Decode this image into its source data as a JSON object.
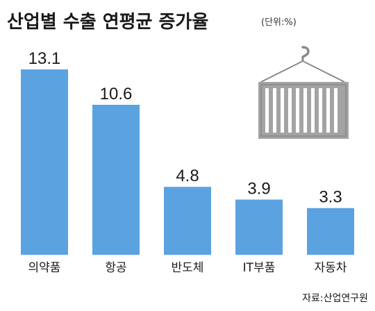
{
  "chart_data": {
    "type": "bar",
    "title": "산업별 수출 연평균 증가율",
    "unit": "(단위:%)",
    "categories": [
      "의약품",
      "항공",
      "반도체",
      "IT부품",
      "자동차"
    ],
    "values": [
      13.1,
      10.6,
      4.8,
      3.9,
      3.3
    ],
    "value_labels": [
      "13.1",
      "10.6",
      "4.8",
      "3.9",
      "3.3"
    ],
    "ylim": [
      0,
      13.1
    ],
    "grid": false,
    "bar_color": "#5aa2e0",
    "source": "자료:산업연구원"
  },
  "decor": {
    "icon": "shipping-container-icon",
    "container_color": "#a3a3a3",
    "hook_color": "#888888"
  }
}
